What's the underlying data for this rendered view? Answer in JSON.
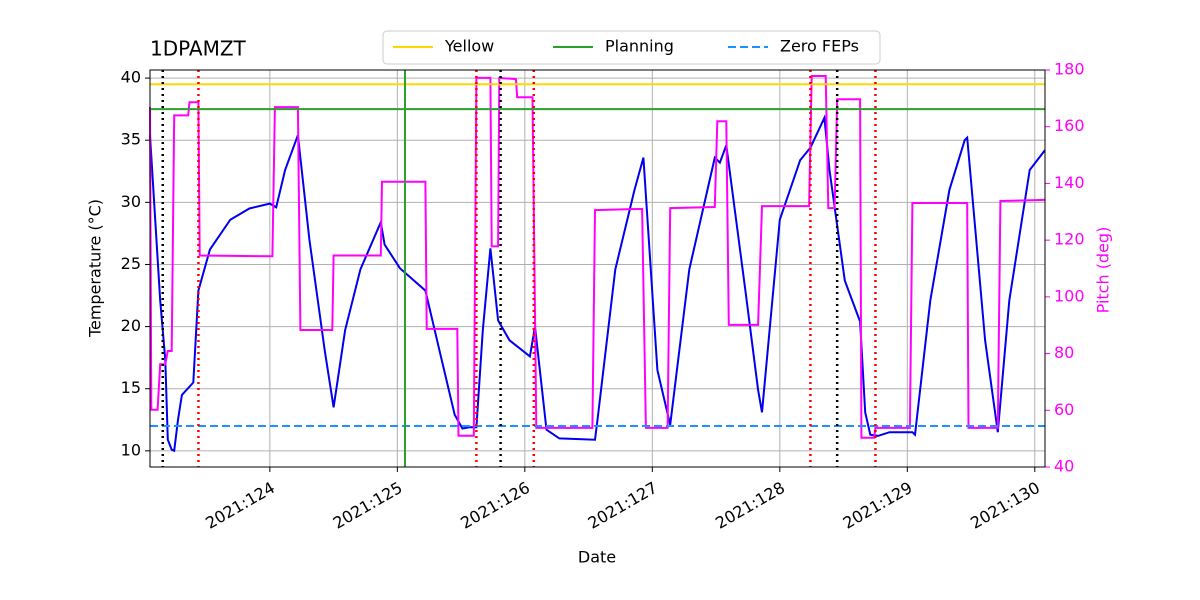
{
  "chart_data": {
    "type": "line",
    "title": "1DPAMZT",
    "xlabel": "Date",
    "ylabel": "Temperature (°C)",
    "y2label": "Pitch (deg)",
    "xlim": [
      123.06,
      130.08
    ],
    "ylim": [
      8.7,
      40.65
    ],
    "y2lim": [
      40,
      180
    ],
    "xticks": [
      {
        "value": 124,
        "label": "2021:124"
      },
      {
        "value": 125,
        "label": "2021:125"
      },
      {
        "value": 126,
        "label": "2021:126"
      },
      {
        "value": 127,
        "label": "2021:127"
      },
      {
        "value": 128,
        "label": "2021:128"
      },
      {
        "value": 129,
        "label": "2021:129"
      },
      {
        "value": 130,
        "label": "2021:130"
      }
    ],
    "yticks": [
      10,
      15,
      20,
      25,
      30,
      35,
      40
    ],
    "y2ticks": [
      40,
      60,
      80,
      100,
      120,
      140,
      160,
      180
    ],
    "grid": true,
    "legend": "top",
    "series": [
      {
        "color": "#0000ee",
        "axis": "y",
        "x": [
          123.06,
          123.14,
          123.18,
          123.2,
          123.23,
          123.25,
          123.28,
          123.31,
          123.4,
          123.44,
          123.53,
          123.69,
          123.84,
          124.0,
          124.05,
          124.12,
          124.22,
          124.31,
          124.43,
          124.5,
          124.59,
          124.71,
          124.87,
          124.9,
          125.02,
          125.22,
          125.33,
          125.45,
          125.51,
          125.57,
          125.62,
          125.67,
          125.73,
          125.79,
          125.88,
          126.04,
          126.08,
          126.17,
          126.27,
          126.55,
          126.57,
          126.71,
          126.86,
          126.93,
          127.04,
          127.14,
          127.29,
          127.45,
          127.49,
          127.53,
          127.58,
          127.73,
          127.83,
          127.86,
          128.0,
          128.16,
          128.24,
          128.35,
          128.39,
          128.51,
          128.63,
          128.67,
          128.71,
          128.77,
          128.86,
          129.04,
          129.06,
          129.18,
          129.33,
          129.45,
          129.47,
          129.61,
          129.71,
          129.8,
          129.96,
          130.08
        ],
        "values": [
          35.4,
          22.1,
          17.3,
          10.9,
          10.1,
          10.0,
          12.5,
          14.5,
          15.5,
          22.9,
          26.2,
          28.6,
          29.5,
          29.9,
          29.6,
          32.6,
          35.4,
          27.0,
          18.1,
          13.5,
          19.7,
          24.6,
          28.4,
          26.6,
          24.7,
          22.9,
          18.1,
          12.9,
          11.8,
          11.9,
          11.9,
          19.7,
          26.3,
          20.5,
          18.9,
          17.6,
          20.0,
          11.7,
          11.0,
          10.9,
          12.5,
          24.6,
          31.0,
          33.6,
          16.5,
          12.1,
          24.6,
          31.8,
          33.6,
          33.2,
          34.6,
          22.9,
          14.9,
          13.1,
          28.6,
          33.4,
          34.4,
          36.8,
          32.6,
          23.7,
          20.4,
          13.1,
          11.3,
          11.2,
          11.5,
          11.5,
          11.3,
          22.1,
          31.0,
          35.0,
          35.2,
          18.9,
          11.5,
          22.1,
          32.6,
          34.2
        ]
      },
      {
        "color": "#ff00ff",
        "axis": "y2",
        "x": [
          123.06,
          123.07,
          123.12,
          123.14,
          123.18,
          123.2,
          123.23,
          123.25,
          123.36,
          123.37,
          123.44,
          123.45,
          124.02,
          124.04,
          124.22,
          124.24,
          124.49,
          124.5,
          124.87,
          124.88,
          125.22,
          125.23,
          125.47,
          125.48,
          125.6,
          125.62,
          125.73,
          125.74,
          125.79,
          125.8,
          125.93,
          125.94,
          126.06,
          126.09,
          126.53,
          126.55,
          126.92,
          126.95,
          127.12,
          127.14,
          127.49,
          127.51,
          127.58,
          127.6,
          127.83,
          127.86,
          128.23,
          128.25,
          128.36,
          128.38,
          128.43,
          128.45,
          128.63,
          128.64,
          128.74,
          128.75,
          129.02,
          129.04,
          129.47,
          129.48,
          129.71,
          129.73,
          130.08
        ],
        "values": [
          166.9,
          60.2,
          60.2,
          76.2,
          76.2,
          80.9,
          80.9,
          164.0,
          164.0,
          168.6,
          168.6,
          114.6,
          114.3,
          166.9,
          166.9,
          88.3,
          88.3,
          114.6,
          114.6,
          140.6,
          140.6,
          88.7,
          88.7,
          51.0,
          51.0,
          177.2,
          177.2,
          117.8,
          117.8,
          177.2,
          176.8,
          170.4,
          170.4,
          53.8,
          53.8,
          130.6,
          131.0,
          53.8,
          53.8,
          131.3,
          131.7,
          161.9,
          161.9,
          90.1,
          90.1,
          132.0,
          132.0,
          177.9,
          177.9,
          131.3,
          131.3,
          169.7,
          169.7,
          50.3,
          50.3,
          53.8,
          53.8,
          133.1,
          133.1,
          53.8,
          53.8,
          133.8,
          134.2
        ]
      }
    ],
    "hlines": [
      {
        "name": "Yellow",
        "value": 39.5,
        "color": "gold",
        "style": "solid"
      },
      {
        "name": "Planning",
        "value": 37.5,
        "color": "#2ca02c",
        "style": "solid"
      },
      {
        "name": "Zero FEPs",
        "value": 12,
        "color": "dodgerblue",
        "style": "dashed"
      }
    ],
    "vlines": [
      {
        "x": 125.06,
        "color": "#2ca02c",
        "style": "solid"
      },
      {
        "x": 123.16,
        "color": "black",
        "style": "dotted"
      },
      {
        "x": 125.81,
        "color": "black",
        "style": "dotted"
      },
      {
        "x": 128.45,
        "color": "black",
        "style": "dotted"
      },
      {
        "x": 123.44,
        "color": "red",
        "style": "dotted"
      },
      {
        "x": 125.62,
        "color": "red",
        "style": "dotted"
      },
      {
        "x": 126.07,
        "color": "red",
        "style": "dotted"
      },
      {
        "x": 128.24,
        "color": "red",
        "style": "dotted"
      },
      {
        "x": 128.75,
        "color": "red",
        "style": "dotted"
      }
    ]
  }
}
